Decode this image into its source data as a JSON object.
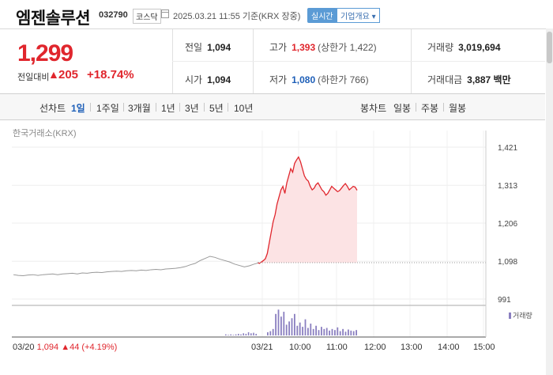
{
  "header": {
    "name": "엠젠솔루션",
    "code": "032790",
    "market": "코스닥",
    "timestamp": "2025.03.21 11:55  기준(KRX 장중)",
    "realtime": "실시간",
    "company_info": "기업개요 ▾"
  },
  "quote": {
    "price": "1,299",
    "change_label": "전일대비",
    "change_arrow": "▲",
    "change_value": "205",
    "change_rate": "+18.74%",
    "prev_close_label": "전일",
    "prev_close": "1,094",
    "high_label": "고가",
    "high": "1,393",
    "upper_limit": "(상한가 1,422)",
    "volume_label": "거래량",
    "volume": "3,019,694",
    "open_label": "시가",
    "open": "1,094",
    "low_label": "저가",
    "low": "1,080",
    "lower_limit": "(하한가 766)",
    "amount_label": "거래대금",
    "amount": "3,887 백만"
  },
  "period_bar": {
    "line_label": "선차트",
    "periods": [
      "1일",
      "1주일",
      "3개월",
      "1년",
      "3년",
      "5년",
      "10년"
    ],
    "active": "1일",
    "candle_label": "봉차트",
    "candles": [
      "일봉",
      "주봉",
      "월봉"
    ]
  },
  "chart": {
    "source_label": "한국거래소(KRX)",
    "volume_legend": "거래량",
    "prev_day_info": {
      "date": "03/20",
      "price": "1,094",
      "arrow": "▲",
      "change": "44",
      "rate": "(+4.19%)"
    },
    "colors": {
      "up": "#e0262d",
      "down": "#1e5fb8",
      "fill": "#fce3e4",
      "prev_line": "#999999",
      "volume": "#8a7fc0"
    }
  },
  "chart_data": {
    "type": "line",
    "yticks": [
      1421,
      1313,
      1206,
      1098,
      991
    ],
    "ylim": [
      991,
      1421
    ],
    "baseline": 1094,
    "xticks": [
      "03/20",
      "03/21",
      "10:00",
      "11:00",
      "12:00",
      "13:00",
      "14:00",
      "15:00"
    ],
    "prev_day_series": [
      1060,
      1058,
      1057,
      1059,
      1060,
      1058,
      1060,
      1061,
      1062,
      1060,
      1062,
      1063,
      1064,
      1062,
      1065,
      1064,
      1066,
      1067,
      1066,
      1068,
      1069,
      1070,
      1069,
      1071,
      1072,
      1071,
      1073,
      1072,
      1074,
      1075,
      1074,
      1076,
      1077,
      1078,
      1080,
      1083,
      1088,
      1092,
      1100,
      1106,
      1112,
      1109,
      1104,
      1100,
      1096,
      1090,
      1086,
      1082,
      1085,
      1090,
      1094
    ],
    "today_series": [
      1094,
      1092,
      1096,
      1100,
      1105,
      1120,
      1150,
      1180,
      1210,
      1230,
      1260,
      1280,
      1300,
      1310,
      1290,
      1320,
      1340,
      1360,
      1350,
      1375,
      1385,
      1393,
      1380,
      1360,
      1340,
      1330,
      1325,
      1310,
      1300,
      1305,
      1315,
      1320,
      1310,
      1300,
      1295,
      1285,
      1290,
      1300,
      1310,
      1305,
      1300,
      1295,
      1298,
      1305,
      1312,
      1318,
      1310,
      1300,
      1305,
      1310,
      1308,
      1299
    ],
    "volume_today": [
      6,
      8,
      12,
      40,
      48,
      35,
      44,
      20,
      26,
      32,
      40,
      18,
      24,
      16,
      30,
      14,
      22,
      12,
      18,
      10,
      16,
      12,
      14,
      9,
      12,
      10,
      15,
      8,
      12,
      7,
      11,
      9,
      8,
      10
    ],
    "volume_prev": [
      2,
      1,
      2,
      1,
      2,
      3,
      2,
      4,
      3,
      6,
      4,
      5,
      3
    ]
  }
}
